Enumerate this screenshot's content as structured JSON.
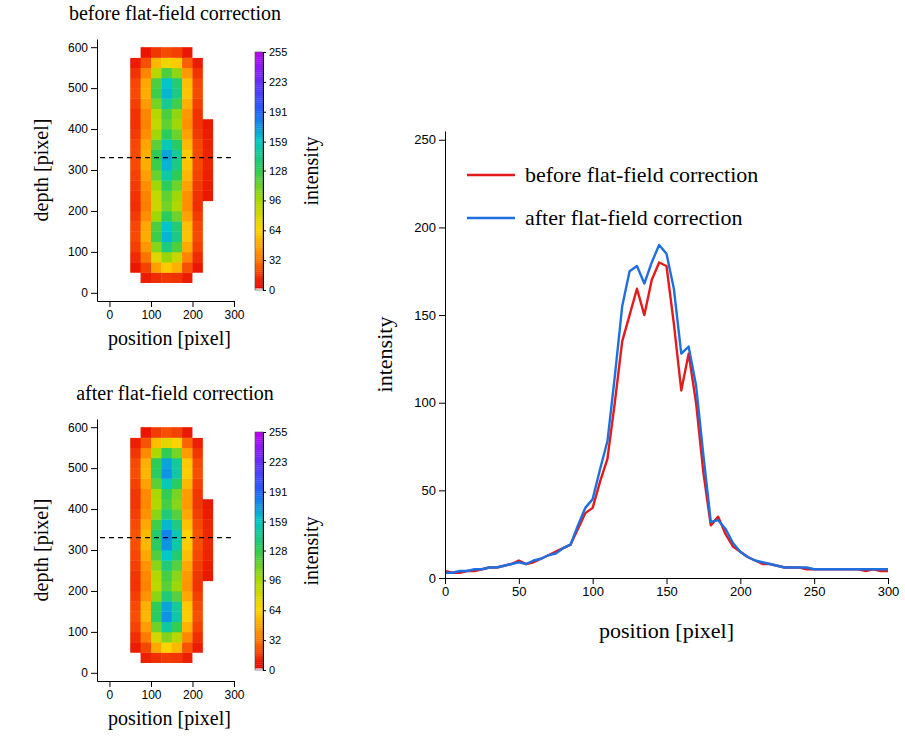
{
  "chart_data": [
    {
      "type": "heatmap",
      "title": "before flat-field correction",
      "x_label": "position [pixel]",
      "y_label": "depth [pixel]",
      "x_bins": [
        0,
        25,
        50,
        75,
        100,
        125,
        150,
        175,
        200,
        225,
        250,
        275,
        300
      ],
      "y_bins": [
        0,
        25,
        50,
        75,
        100,
        125,
        150,
        175,
        200,
        225,
        250,
        275,
        300,
        325,
        350,
        375,
        400,
        425,
        450,
        475,
        500,
        525,
        550,
        575,
        600
      ],
      "values": [
        [
          0,
          0,
          0,
          0,
          0,
          0,
          0,
          0,
          0,
          0,
          0,
          0
        ],
        [
          0,
          0,
          0,
          8,
          12,
          15,
          14,
          8,
          0,
          0,
          0,
          0
        ],
        [
          0,
          0,
          7,
          18,
          45,
          60,
          51,
          21,
          7,
          0,
          0,
          0
        ],
        [
          0,
          0,
          12,
          30,
          75,
          100,
          85,
          35,
          12,
          0,
          0,
          0
        ],
        [
          0,
          0,
          17,
          42,
          105,
          140,
          119,
          49,
          17,
          0,
          0,
          0
        ],
        [
          0,
          0,
          20,
          50,
          124,
          165,
          140,
          58,
          20,
          0,
          0,
          0
        ],
        [
          0,
          0,
          19,
          48,
          120,
          160,
          136,
          56,
          19,
          0,
          0,
          0
        ],
        [
          0,
          0,
          16,
          39,
          98,
          130,
          111,
          46,
          16,
          0,
          0,
          0
        ],
        [
          0,
          0,
          13,
          33,
          83,
          110,
          94,
          39,
          13,
          0,
          0,
          0
        ],
        [
          0,
          0,
          14,
          35,
          86,
          115,
          98,
          40,
          14,
          7,
          0,
          0
        ],
        [
          0,
          0,
          16,
          39,
          98,
          130,
          111,
          46,
          16,
          8,
          0,
          0
        ],
        [
          0,
          0,
          18,
          45,
          113,
          150,
          128,
          53,
          18,
          9,
          0,
          0
        ],
        [
          0,
          0,
          20,
          50,
          124,
          165,
          140,
          58,
          20,
          10,
          0,
          0
        ],
        [
          0,
          0,
          20,
          51,
          128,
          170,
          145,
          60,
          20,
          10,
          0,
          0
        ],
        [
          0,
          0,
          19,
          47,
          116,
          155,
          132,
          54,
          19,
          9,
          0,
          0
        ],
        [
          0,
          0,
          16,
          39,
          98,
          130,
          111,
          46,
          16,
          8,
          0,
          0
        ],
        [
          0,
          0,
          14,
          35,
          86,
          115,
          98,
          40,
          14,
          7,
          0,
          0
        ],
        [
          0,
          0,
          14,
          36,
          90,
          120,
          102,
          42,
          14,
          0,
          0,
          0
        ],
        [
          0,
          0,
          17,
          44,
          109,
          145,
          123,
          51,
          17,
          0,
          0,
          0
        ],
        [
          0,
          0,
          20,
          50,
          124,
          165,
          140,
          58,
          20,
          0,
          0,
          0
        ],
        [
          0,
          0,
          19,
          48,
          120,
          160,
          136,
          56,
          19,
          0,
          0,
          0
        ],
        [
          0,
          0,
          14,
          36,
          90,
          120,
          102,
          42,
          14,
          0,
          0,
          0
        ],
        [
          0,
          0,
          8,
          21,
          53,
          70,
          60,
          25,
          8,
          0,
          0,
          0
        ],
        [
          0,
          0,
          0,
          6,
          15,
          20,
          17,
          7,
          0,
          0,
          0,
          0
        ]
      ],
      "xlim": [
        -30,
        300
      ],
      "xticks": [
        0,
        100,
        200,
        300
      ],
      "ylim": [
        -20,
        620
      ],
      "yticks": [
        0,
        100,
        200,
        300,
        400,
        500,
        600
      ],
      "colorbar": {
        "label": "intensity",
        "range": [
          0,
          255
        ],
        "ticks": [
          0,
          32,
          64,
          96,
          128,
          159,
          191,
          223,
          255
        ]
      },
      "profile_depth": 330
    },
    {
      "type": "heatmap",
      "title": "after flat-field correction",
      "x_label": "position [pixel]",
      "y_label": "depth [pixel]",
      "x_bins": [
        0,
        25,
        50,
        75,
        100,
        125,
        150,
        175,
        200,
        225,
        250,
        275,
        300
      ],
      "y_bins": [
        0,
        25,
        50,
        75,
        100,
        125,
        150,
        175,
        200,
        225,
        250,
        275,
        300,
        325,
        350,
        375,
        400,
        425,
        450,
        475,
        500,
        525,
        550,
        575,
        600
      ],
      "values": [
        [
          0,
          0,
          0,
          0,
          0,
          0,
          0,
          0,
          0,
          0,
          0,
          0
        ],
        [
          0,
          0,
          0,
          9,
          13,
          16,
          15,
          9,
          0,
          0,
          0,
          0
        ],
        [
          0,
          0,
          8,
          19,
          48,
          64,
          54,
          22,
          8,
          0,
          0,
          0
        ],
        [
          0,
          0,
          13,
          32,
          80,
          106,
          90,
          37,
          13,
          0,
          0,
          0
        ],
        [
          0,
          0,
          18,
          44,
          111,
          148,
          126,
          52,
          18,
          0,
          0,
          0
        ],
        [
          0,
          0,
          21,
          53,
          131,
          175,
          149,
          61,
          21,
          0,
          0,
          0
        ],
        [
          0,
          0,
          20,
          51,
          128,
          170,
          145,
          60,
          20,
          0,
          0,
          0
        ],
        [
          0,
          0,
          17,
          41,
          104,
          138,
          117,
          48,
          17,
          0,
          0,
          0
        ],
        [
          0,
          0,
          14,
          35,
          88,
          117,
          99,
          41,
          14,
          0,
          0,
          0
        ],
        [
          0,
          0,
          15,
          37,
          92,
          122,
          104,
          43,
          15,
          7,
          0,
          0
        ],
        [
          0,
          0,
          17,
          41,
          104,
          138,
          117,
          48,
          17,
          8,
          0,
          0
        ],
        [
          0,
          0,
          19,
          48,
          119,
          159,
          135,
          56,
          19,
          10,
          0,
          0
        ],
        [
          0,
          0,
          21,
          53,
          131,
          175,
          149,
          61,
          21,
          11,
          0,
          0
        ],
        [
          0,
          0,
          22,
          54,
          135,
          180,
          153,
          63,
          22,
          11,
          0,
          0
        ],
        [
          0,
          0,
          20,
          49,
          123,
          164,
          139,
          57,
          20,
          10,
          0,
          0
        ],
        [
          0,
          0,
          17,
          41,
          104,
          138,
          117,
          48,
          17,
          8,
          0,
          0
        ],
        [
          0,
          0,
          15,
          37,
          92,
          122,
          104,
          43,
          15,
          7,
          0,
          0
        ],
        [
          0,
          0,
          15,
          38,
          95,
          127,
          108,
          44,
          15,
          0,
          0,
          0
        ],
        [
          0,
          0,
          18,
          46,
          116,
          154,
          131,
          54,
          18,
          0,
          0,
          0
        ],
        [
          0,
          0,
          21,
          53,
          131,
          175,
          149,
          61,
          21,
          0,
          0,
          0
        ],
        [
          0,
          0,
          20,
          51,
          128,
          170,
          145,
          60,
          20,
          0,
          0,
          0
        ],
        [
          0,
          0,
          15,
          38,
          95,
          127,
          108,
          44,
          15,
          0,
          0,
          0
        ],
        [
          0,
          0,
          9,
          22,
          56,
          74,
          63,
          26,
          9,
          0,
          0,
          0
        ],
        [
          0,
          0,
          0,
          6,
          16,
          21,
          18,
          7,
          0,
          0,
          0,
          0
        ]
      ],
      "xlim": [
        -30,
        300
      ],
      "xticks": [
        0,
        100,
        200,
        300
      ],
      "ylim": [
        -20,
        620
      ],
      "yticks": [
        0,
        100,
        200,
        300,
        400,
        500,
        600
      ],
      "colorbar": {
        "label": "intensity",
        "range": [
          0,
          255
        ],
        "ticks": [
          0,
          32,
          64,
          96,
          128,
          159,
          191,
          223,
          255
        ]
      },
      "profile_depth": 330
    },
    {
      "type": "line",
      "x_label": "position [pixel]",
      "y_label": "intensity",
      "x": [
        0,
        5,
        10,
        15,
        20,
        25,
        30,
        35,
        40,
        45,
        50,
        55,
        60,
        65,
        70,
        75,
        80,
        85,
        90,
        95,
        100,
        105,
        110,
        115,
        120,
        125,
        130,
        135,
        140,
        145,
        150,
        155,
        160,
        165,
        170,
        175,
        180,
        185,
        190,
        195,
        200,
        205,
        210,
        215,
        220,
        225,
        230,
        235,
        240,
        245,
        250,
        255,
        260,
        265,
        270,
        275,
        280,
        285,
        290,
        295,
        300
      ],
      "series": [
        {
          "name": "before flat-field correction",
          "color": "#e41a1c",
          "values": [
            4,
            3,
            3,
            4,
            4,
            5,
            6,
            6,
            7,
            8,
            10,
            8,
            9,
            11,
            13,
            15,
            17,
            19,
            28,
            37,
            40,
            55,
            68,
            100,
            135,
            150,
            165,
            150,
            170,
            180,
            178,
            145,
            107,
            128,
            100,
            60,
            30,
            35,
            25,
            18,
            15,
            12,
            10,
            8,
            8,
            7,
            6,
            6,
            6,
            5,
            5,
            5,
            5,
            5,
            5,
            5,
            5,
            4,
            5,
            4,
            4
          ]
        },
        {
          "name": "after flat-field correction",
          "color": "#1f6fdf",
          "values": [
            3,
            3,
            4,
            4,
            5,
            5,
            6,
            6,
            7,
            8,
            9,
            8,
            10,
            11,
            13,
            14,
            17,
            19,
            30,
            40,
            45,
            62,
            78,
            115,
            155,
            175,
            178,
            168,
            180,
            190,
            185,
            165,
            128,
            132,
            110,
            70,
            32,
            33,
            28,
            20,
            15,
            12,
            10,
            9,
            8,
            7,
            6,
            6,
            6,
            6,
            5,
            5,
            5,
            5,
            5,
            5,
            5,
            5,
            5,
            5,
            5
          ]
        }
      ],
      "xlim": [
        0,
        300
      ],
      "xticks": [
        0,
        50,
        100,
        150,
        200,
        250,
        300
      ],
      "ylim": [
        0,
        255
      ],
      "yticks": [
        0,
        50,
        100,
        150,
        200,
        250
      ],
      "legend": "upper left"
    }
  ]
}
